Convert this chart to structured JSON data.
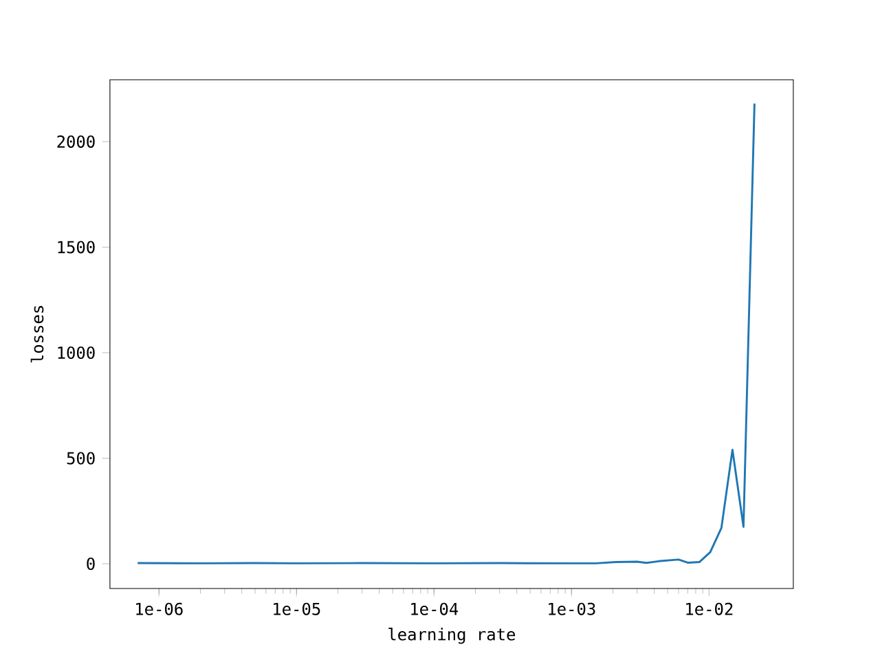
{
  "chart_data": {
    "type": "line",
    "xlabel": "learning rate",
    "ylabel": "losses",
    "x": [
      7e-07,
      2e-06,
      5e-06,
      1e-05,
      3e-05,
      0.0001,
      0.0003,
      0.001,
      0.0015,
      0.0021,
      0.003,
      0.0035,
      0.0043,
      0.006,
      0.007,
      0.0085,
      0.0102,
      0.0123,
      0.0148,
      0.0178,
      0.0214
    ],
    "series": [
      {
        "color": "#1f77b4",
        "values": [
          3,
          2,
          3,
          2,
          3,
          2,
          3,
          2,
          2,
          8,
          10,
          4,
          12,
          20,
          5,
          8,
          55,
          170,
          540,
          175,
          2180
        ]
      }
    ],
    "log": "x",
    "xlim": [
      4.4e-07,
      0.041
    ],
    "ylim": [
      -117,
      2293
    ],
    "xticks": [
      {
        "value": 1e-06,
        "label": "1e-06"
      },
      {
        "value": 1e-05,
        "label": "1e-05"
      },
      {
        "value": 0.0001,
        "label": "1e-04"
      },
      {
        "value": 0.001,
        "label": "1e-03"
      },
      {
        "value": 0.01,
        "label": "1e-02"
      }
    ],
    "yticks": [
      0,
      500,
      1000,
      1500,
      2000
    ],
    "marker": "none",
    "line_style": "solid"
  }
}
